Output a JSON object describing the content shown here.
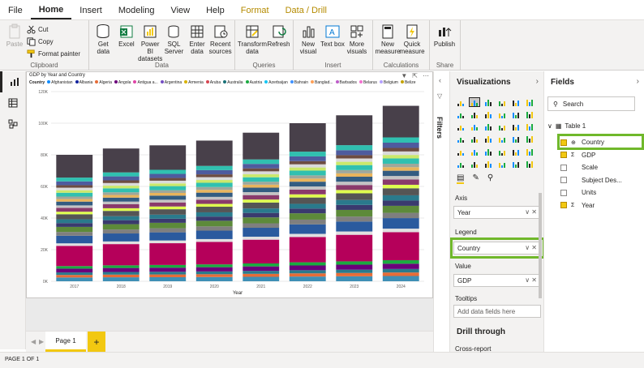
{
  "menu": [
    "File",
    "Home",
    "Insert",
    "Modeling",
    "View",
    "Help",
    "Format",
    "Data / Drill"
  ],
  "ribbon": {
    "clipboard": {
      "paste": "Paste",
      "cut": "Cut",
      "copy": "Copy",
      "format_painter": "Format painter",
      "label": "Clipboard"
    },
    "data": {
      "get_data": "Get data",
      "excel": "Excel",
      "power_bi": "Power BI datasets",
      "sql": "SQL Server",
      "enter": "Enter data",
      "recent": "Recent sources",
      "label": "Data"
    },
    "queries": {
      "transform": "Transform data",
      "refresh": "Refresh",
      "label": "Queries"
    },
    "insert": {
      "new_visual": "New visual",
      "text_box": "Text box",
      "more_visuals": "More visuals",
      "label": "Insert"
    },
    "calculations": {
      "new_measure": "New measure",
      "quick_measure": "Quick measure",
      "label": "Calculations"
    },
    "share": {
      "publish": "Publish",
      "label": "Share"
    }
  },
  "visual": {
    "title": "GDP by Year and Country",
    "legend_title": "Country",
    "legend_items": [
      "Afghanistan",
      "Albania",
      "Algeria",
      "Angola",
      "Antigua a...",
      "Argentina",
      "Armenia",
      "Aruba",
      "Australia",
      "Austria",
      "Azerbaijan",
      "Bahrain",
      "Banglad...",
      "Barbados",
      "Belarus",
      "Belgium",
      "Belize"
    ],
    "x_axis_title": "Year"
  },
  "chart_data": {
    "type": "bar",
    "stacked": true,
    "categories": [
      "2017",
      "2018",
      "2019",
      "2020",
      "2021",
      "2022",
      "2023",
      "2024"
    ],
    "totals": [
      80000,
      84000,
      86000,
      89000,
      94000,
      100000,
      105000,
      111000
    ],
    "ylim": [
      0,
      120000
    ],
    "y_ticks": [
      "0K",
      "20K",
      "40K",
      "60K",
      "80K",
      "100K",
      "120K"
    ],
    "xlabel": "Year",
    "legend_title": "Country"
  },
  "canvas": {
    "tab": "Page 1",
    "add": "+"
  },
  "status": "PAGE 1 OF 1",
  "filters": {
    "label": "Filters"
  },
  "visualizations": {
    "title": "Visualizations",
    "axis_label": "Axis",
    "axis_value": "Year",
    "legend_label": "Legend",
    "legend_value": "Country",
    "value_label": "Value",
    "value_value": "GDP",
    "tooltips_label": "Tooltips",
    "tooltips_placeholder": "Add data fields here",
    "drill_through": "Drill through",
    "cross_report": "Cross-report"
  },
  "fields": {
    "title": "Fields",
    "search_placeholder": "Search",
    "table": "Table 1",
    "items": [
      {
        "name": "Country",
        "checked": true
      },
      {
        "name": "GDP",
        "checked": true
      },
      {
        "name": "Scale",
        "checked": false
      },
      {
        "name": "Subject Des...",
        "checked": false
      },
      {
        "name": "Units",
        "checked": false
      },
      {
        "name": "Year",
        "checked": true
      }
    ]
  },
  "colors": {
    "highlight": "#70b82b",
    "accent": "#f2c811",
    "dark_segment": "#48404a",
    "magenta_segment": "#b5005a"
  }
}
